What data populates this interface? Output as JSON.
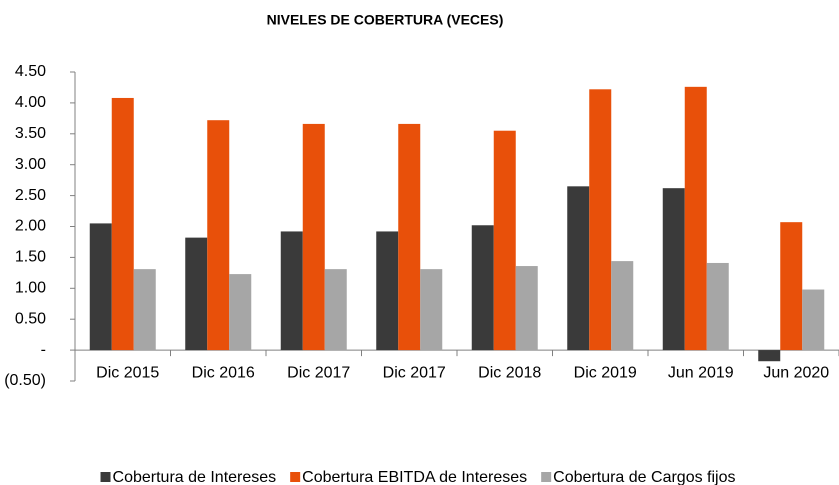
{
  "chart_data": {
    "type": "bar",
    "title": "NIVELES DE COBERTURA (VECES)",
    "categories": [
      "Dic 2015",
      "Dic 2016",
      "Dic 2017",
      "Dic 2017",
      "Dic 2018",
      "Dic 2019",
      "Jun 2019",
      "Jun 2020"
    ],
    "series": [
      {
        "name": "Cobertura de Intereses",
        "color": "#3a3a3a",
        "values": [
          2.05,
          1.82,
          1.92,
          1.92,
          2.02,
          2.65,
          2.62,
          -0.18
        ]
      },
      {
        "name": "Cobertura EBITDA de Intereses",
        "color": "#e8500a",
        "values": [
          4.08,
          3.72,
          3.66,
          3.66,
          3.55,
          4.22,
          4.26,
          2.07
        ]
      },
      {
        "name": "Cobertura de Cargos fijos",
        "color": "#a6a6a6",
        "values": [
          1.31,
          1.23,
          1.31,
          1.31,
          1.36,
          1.44,
          1.41,
          0.98
        ]
      }
    ],
    "ylim": [
      -0.5,
      4.5
    ],
    "yticks": [
      {
        "value": -0.5,
        "label": "(0.50)"
      },
      {
        "value": 0,
        "label": "-"
      },
      {
        "value": 0.5,
        "label": "0.50"
      },
      {
        "value": 1,
        "label": "1.00"
      },
      {
        "value": 1.5,
        "label": "1.50"
      },
      {
        "value": 2,
        "label": "2.00"
      },
      {
        "value": 2.5,
        "label": "2.50"
      },
      {
        "value": 3,
        "label": "3.00"
      },
      {
        "value": 3.5,
        "label": "3.50"
      },
      {
        "value": 4,
        "label": "4.00"
      },
      {
        "value": 4.5,
        "label": "4.50"
      }
    ],
    "grid": false,
    "legend": "bottom"
  }
}
